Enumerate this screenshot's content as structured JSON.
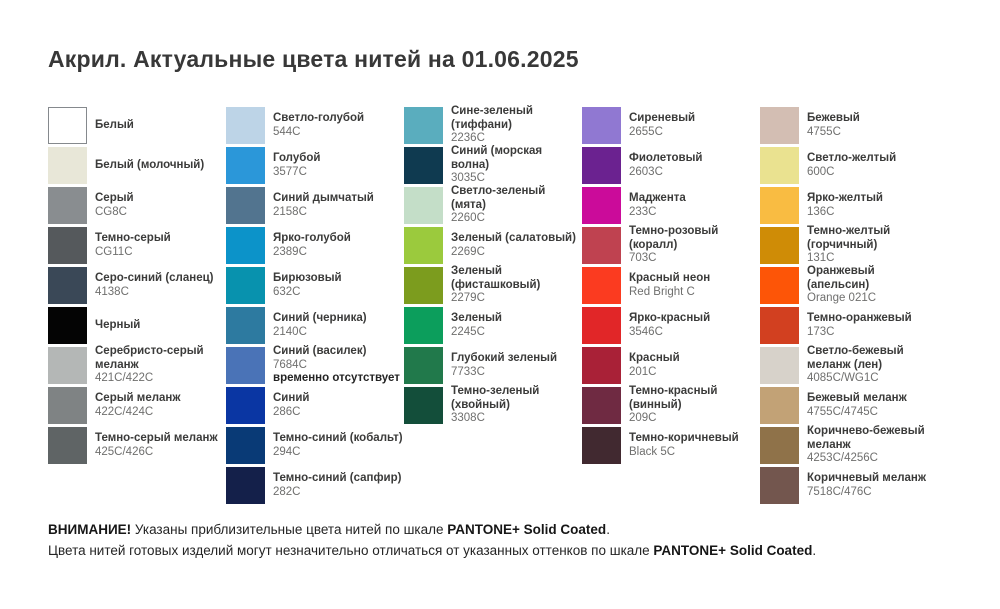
{
  "title": "Акрил. Актуальные цвета нитей на 01.06.2025",
  "palette": {
    "columns": [
      {
        "items": [
          {
            "name": "Белый",
            "code": "",
            "note": "",
            "color": "#ffffff",
            "bordered": true
          },
          {
            "name": "Белый (молочный)",
            "code": "",
            "note": "",
            "color": "#e8e7d8",
            "bordered": false
          },
          {
            "name": "Серый",
            "code": "CG8C",
            "note": "",
            "color": "#898d90",
            "bordered": false
          },
          {
            "name": "Темно-серый",
            "code": "CG11C",
            "note": "",
            "color": "#55595c",
            "bordered": false
          },
          {
            "name": "Серо-синий (сланец)",
            "code": "4138C",
            "note": "",
            "color": "#3a4857",
            "bordered": false
          },
          {
            "name": "Черный",
            "code": "",
            "note": "",
            "color": "#040404",
            "bordered": false
          },
          {
            "name": "Серебристо-серый\nмеланж",
            "code": "421C/422C",
            "note": "",
            "color": "#b4b7b6",
            "bordered": false
          },
          {
            "name": "Серый меланж",
            "code": "422C/424C",
            "note": "",
            "color": "#7f8384",
            "bordered": false
          },
          {
            "name": "Темно-серый меланж",
            "code": "425C/426C",
            "note": "",
            "color": "#5f6465",
            "bordered": false
          }
        ]
      },
      {
        "items": [
          {
            "name": "Светло-голубой",
            "code": "544C",
            "note": "",
            "color": "#bdd4e7",
            "bordered": false
          },
          {
            "name": "Голубой",
            "code": "3577C",
            "note": "",
            "color": "#2b97d9",
            "bordered": false
          },
          {
            "name": "Синий дымчатый",
            "code": "2158C",
            "note": "",
            "color": "#52748f",
            "bordered": false
          },
          {
            "name": "Ярко-голубой",
            "code": "2389C",
            "note": "",
            "color": "#0c93c9",
            "bordered": false
          },
          {
            "name": "Бирюзовый",
            "code": "632C",
            "note": "",
            "color": "#0892ae",
            "bordered": false
          },
          {
            "name": "Синий (черника)",
            "code": "2140C",
            "note": "",
            "color": "#2d7aa0",
            "bordered": false
          },
          {
            "name": "Синий (василек)",
            "code": "7684C",
            "note": "временно отсутствует",
            "color": "#4a73b7",
            "bordered": false
          },
          {
            "name": "Синий",
            "code": "286C",
            "note": "",
            "color": "#0a36a3",
            "bordered": false
          },
          {
            "name": "Темно-синий (кобальт)",
            "code": "294C",
            "note": "",
            "color": "#093a76",
            "bordered": false
          },
          {
            "name": "Темно-синий (сапфир)",
            "code": "282C",
            "note": "",
            "color": "#14204a",
            "bordered": false
          }
        ]
      },
      {
        "items": [
          {
            "name": "Сине-зеленый (тиффани)",
            "code": "2236C",
            "note": "",
            "color": "#5aadbe",
            "bordered": false
          },
          {
            "name": "Синий (морская волна)",
            "code": "3035C",
            "note": "",
            "color": "#0f3a50",
            "bordered": false
          },
          {
            "name": "Светло-зеленый (мята)",
            "code": "2260C",
            "note": "",
            "color": "#c4dec8",
            "bordered": false
          },
          {
            "name": "Зеленый (салатовый)",
            "code": "2269C",
            "note": "",
            "color": "#9bca3d",
            "bordered": false
          },
          {
            "name": "Зеленый (фисташковый)",
            "code": "2279C",
            "note": "",
            "color": "#7c9c1e",
            "bordered": false
          },
          {
            "name": "Зеленый",
            "code": "2245C",
            "note": "",
            "color": "#0c9e5c",
            "bordered": false
          },
          {
            "name": "Глубокий зеленый",
            "code": "7733C",
            "note": "",
            "color": "#21794b",
            "bordered": false
          },
          {
            "name": "Темно-зеленый (хвойный)",
            "code": "3308C",
            "note": "",
            "color": "#134e3a",
            "bordered": false
          }
        ]
      },
      {
        "items": [
          {
            "name": "Сиреневый",
            "code": "2655C",
            "note": "",
            "color": "#9078d2",
            "bordered": false
          },
          {
            "name": "Фиолетовый",
            "code": "2603C",
            "note": "",
            "color": "#6b2290",
            "bordered": false
          },
          {
            "name": "Маджента",
            "code": "233C",
            "note": "",
            "color": "#cb0b9a",
            "bordered": false
          },
          {
            "name": "Темно-розовый (коралл)",
            "code": "703C",
            "note": "",
            "color": "#bf4250",
            "bordered": false
          },
          {
            "name": "Красный неон",
            "code": "Red Bright C",
            "note": "",
            "color": "#fb3b20",
            "bordered": false
          },
          {
            "name": "Ярко-красный",
            "code": "3546C",
            "note": "",
            "color": "#e12628",
            "bordered": false
          },
          {
            "name": "Красный",
            "code": "201C",
            "note": "",
            "color": "#a92137",
            "bordered": false
          },
          {
            "name": "Темно-красный (винный)",
            "code": "209C",
            "note": "",
            "color": "#6f2a42",
            "bordered": false
          },
          {
            "name": "Темно-коричневый",
            "code": "Black 5C",
            "note": "",
            "color": "#412930",
            "bordered": false
          }
        ]
      },
      {
        "items": [
          {
            "name": "Бежевый",
            "code": "4755C",
            "note": "",
            "color": "#d3beb3",
            "bordered": false
          },
          {
            "name": "Светло-желтый",
            "code": "600C",
            "note": "",
            "color": "#eae290",
            "bordered": false
          },
          {
            "name": "Ярко-желтый",
            "code": "136C",
            "note": "",
            "color": "#f9bc42",
            "bordered": false
          },
          {
            "name": "Темно-желтый (горчичный)",
            "code": "131C",
            "note": "",
            "color": "#cf8c06",
            "bordered": false
          },
          {
            "name": "Оранжевый (апельсин)",
            "code": "Orange 021C",
            "note": "",
            "color": "#fd5507",
            "bordered": false
          },
          {
            "name": "Темно-оранжевый",
            "code": "173C",
            "note": "",
            "color": "#d24020",
            "bordered": false
          },
          {
            "name": "Светло-бежевый меланж (лен)",
            "code": "4085C/WG1C",
            "note": "",
            "color": "#d7d2ca",
            "bordered": false
          },
          {
            "name": "Бежевый меланж",
            "code": "4755C/4745C",
            "note": "",
            "color": "#c2a276",
            "bordered": false
          },
          {
            "name": "Коричнево-бежевый меланж",
            "code": "4253C/4256C",
            "note": "",
            "color": "#8f7249",
            "bordered": false
          },
          {
            "name": "Коричневый меланж",
            "code": "7518C/476C",
            "note": "",
            "color": "#73564e",
            "bordered": false
          }
        ]
      }
    ]
  },
  "footer": {
    "line1_bold_prefix": "ВНИМАНИЕ!",
    "line1_text": " Указаны приблизительные цвета нитей по шкале ",
    "line1_bold": "PANTONE+ Solid Coated",
    "line1_end": ".",
    "line2_text": "Цвета нитей готовых изделий могут незначительно отличаться от указанных оттенков по шкале ",
    "line2_bold": "PANTONE+ Solid Coated",
    "line2_end": "."
  }
}
